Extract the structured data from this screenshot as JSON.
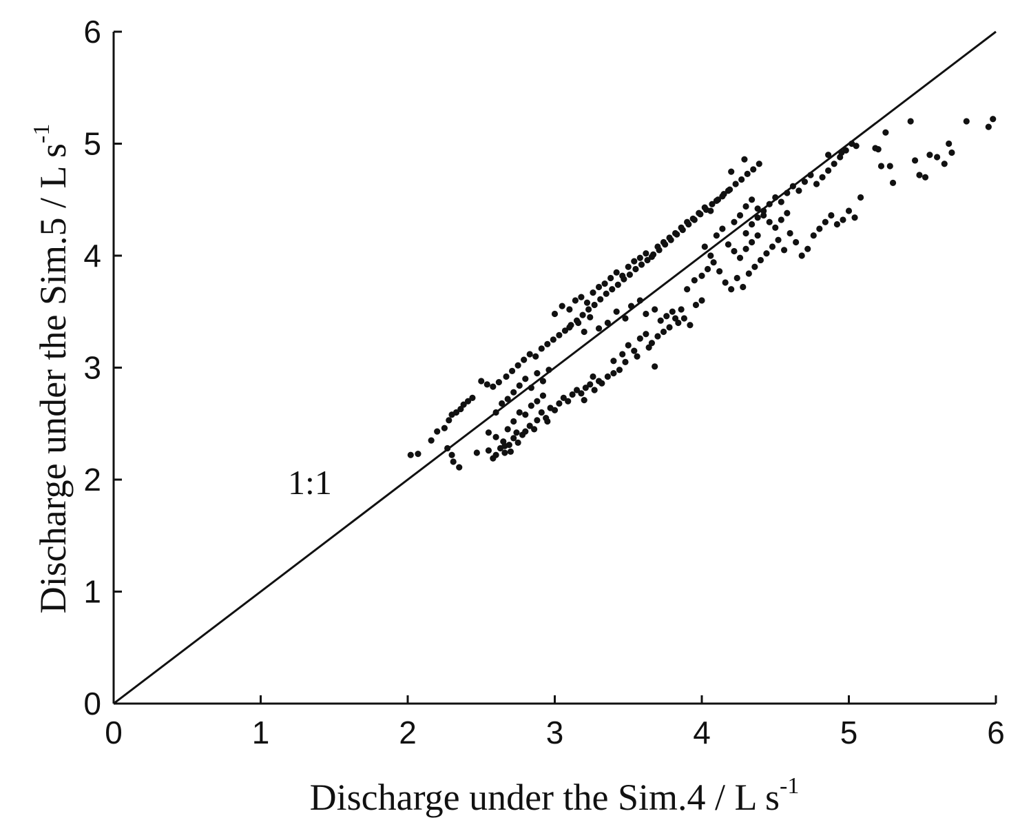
{
  "chart_data": {
    "type": "scatter",
    "title": "",
    "xlabel": "Discharge under the Sim.4 / L s",
    "xlabel_sup": "-1",
    "ylabel": "Discharge under the Sim.5 / L s",
    "ylabel_sup": "-1",
    "xlim": [
      0,
      6
    ],
    "ylim": [
      0,
      6
    ],
    "xticks": [
      "0",
      "1",
      "2",
      "3",
      "4",
      "5",
      "6"
    ],
    "yticks": [
      "0",
      "1",
      "2",
      "3",
      "4",
      "5",
      "6"
    ],
    "grid": false,
    "legend": "none",
    "colors": {
      "points": "#111111",
      "line": "#111111",
      "axis": "#111111"
    },
    "reference_line": {
      "label": "1:1",
      "x": [
        0,
        6
      ],
      "y": [
        0,
        6
      ]
    },
    "series": [
      {
        "points": [
          [
            2.02,
            2.22
          ],
          [
            2.07,
            2.23
          ],
          [
            2.16,
            2.35
          ],
          [
            2.2,
            2.43
          ],
          [
            2.25,
            2.46
          ],
          [
            2.28,
            2.53
          ],
          [
            2.3,
            2.58
          ],
          [
            2.33,
            2.6
          ],
          [
            2.36,
            2.63
          ],
          [
            2.38,
            2.67
          ],
          [
            2.41,
            2.7
          ],
          [
            2.44,
            2.73
          ],
          [
            2.27,
            2.28
          ],
          [
            2.31,
            2.16
          ],
          [
            2.35,
            2.11
          ],
          [
            2.3,
            2.22
          ],
          [
            2.47,
            2.24
          ],
          [
            2.55,
            2.26
          ],
          [
            2.58,
            2.19
          ],
          [
            2.6,
            2.22
          ],
          [
            2.63,
            2.28
          ],
          [
            2.66,
            2.24
          ],
          [
            2.69,
            2.31
          ],
          [
            2.72,
            2.37
          ],
          [
            2.75,
            2.33
          ],
          [
            2.78,
            2.4
          ],
          [
            2.8,
            2.43
          ],
          [
            2.83,
            2.48
          ],
          [
            2.86,
            2.45
          ],
          [
            2.7,
            2.25
          ],
          [
            2.66,
            2.3
          ],
          [
            2.74,
            2.42
          ],
          [
            2.88,
            2.53
          ],
          [
            2.91,
            2.6
          ],
          [
            2.94,
            2.55
          ],
          [
            2.97,
            2.64
          ],
          [
            3.0,
            2.62
          ],
          [
            3.03,
            2.68
          ],
          [
            3.06,
            2.73
          ],
          [
            3.09,
            2.7
          ],
          [
            3.12,
            2.76
          ],
          [
            3.15,
            2.8
          ],
          [
            3.18,
            2.77
          ],
          [
            3.21,
            2.82
          ],
          [
            3.24,
            2.85
          ],
          [
            3.27,
            2.8
          ],
          [
            3.3,
            2.88
          ],
          [
            3.2,
            2.71
          ],
          [
            3.26,
            2.92
          ],
          [
            2.95,
            2.52
          ],
          [
            2.5,
            2.88
          ],
          [
            2.54,
            2.85
          ],
          [
            2.58,
            2.83
          ],
          [
            2.62,
            2.87
          ],
          [
            2.67,
            2.92
          ],
          [
            2.71,
            2.97
          ],
          [
            2.75,
            3.02
          ],
          [
            2.79,
            3.07
          ],
          [
            2.83,
            3.12
          ],
          [
            2.87,
            3.1
          ],
          [
            2.91,
            3.17
          ],
          [
            2.95,
            3.21
          ],
          [
            2.99,
            3.25
          ],
          [
            3.03,
            3.29
          ],
          [
            3.07,
            3.33
          ],
          [
            3.11,
            3.38
          ],
          [
            3.15,
            3.42
          ],
          [
            3.19,
            3.47
          ],
          [
            3.23,
            3.52
          ],
          [
            3.27,
            3.56
          ],
          [
            3.31,
            3.61
          ],
          [
            3.35,
            3.66
          ],
          [
            3.39,
            3.7
          ],
          [
            3.43,
            3.74
          ],
          [
            3.47,
            3.79
          ],
          [
            3.51,
            3.83
          ],
          [
            3.55,
            3.88
          ],
          [
            3.59,
            3.92
          ],
          [
            3.63,
            3.96
          ],
          [
            3.67,
            4.01
          ],
          [
            3.71,
            4.05
          ],
          [
            3.75,
            4.1
          ],
          [
            3.79,
            4.14
          ],
          [
            3.83,
            4.19
          ],
          [
            3.87,
            4.23
          ],
          [
            3.91,
            4.28
          ],
          [
            3.95,
            4.32
          ],
          [
            3.99,
            4.37
          ],
          [
            4.03,
            4.41
          ],
          [
            4.07,
            4.46
          ],
          [
            4.11,
            4.5
          ],
          [
            4.15,
            4.55
          ],
          [
            4.19,
            4.59
          ],
          [
            4.23,
            4.64
          ],
          [
            4.27,
            4.68
          ],
          [
            4.31,
            4.73
          ],
          [
            4.35,
            4.77
          ],
          [
            4.39,
            4.82
          ],
          [
            4.29,
            4.86
          ],
          [
            4.2,
            4.75
          ],
          [
            3.0,
            3.48
          ],
          [
            3.05,
            3.55
          ],
          [
            3.1,
            3.52
          ],
          [
            3.14,
            3.6
          ],
          [
            3.18,
            3.63
          ],
          [
            3.22,
            3.58
          ],
          [
            3.26,
            3.67
          ],
          [
            3.3,
            3.72
          ],
          [
            3.34,
            3.75
          ],
          [
            3.38,
            3.8
          ],
          [
            3.42,
            3.85
          ],
          [
            3.46,
            3.82
          ],
          [
            3.5,
            3.9
          ],
          [
            3.54,
            3.95
          ],
          [
            3.58,
            3.98
          ],
          [
            3.62,
            4.02
          ],
          [
            3.66,
            3.99
          ],
          [
            3.7,
            4.08
          ],
          [
            3.74,
            4.12
          ],
          [
            3.78,
            4.16
          ],
          [
            3.82,
            4.2
          ],
          [
            3.86,
            4.25
          ],
          [
            3.9,
            4.3
          ],
          [
            3.94,
            4.33
          ],
          [
            3.98,
            4.38
          ],
          [
            4.02,
            4.43
          ],
          [
            4.06,
            4.4
          ],
          [
            4.1,
            4.49
          ],
          [
            4.14,
            4.53
          ],
          [
            4.18,
            4.58
          ],
          [
            3.1,
            3.36
          ],
          [
            3.16,
            3.4
          ],
          [
            3.2,
            3.32
          ],
          [
            3.24,
            3.45
          ],
          [
            3.3,
            3.35
          ],
          [
            3.36,
            3.4
          ],
          [
            3.42,
            3.5
          ],
          [
            3.48,
            3.44
          ],
          [
            3.52,
            3.55
          ],
          [
            3.58,
            3.6
          ],
          [
            3.62,
            3.48
          ],
          [
            3.68,
            3.52
          ],
          [
            3.72,
            3.42
          ],
          [
            3.76,
            3.46
          ],
          [
            3.8,
            3.5
          ],
          [
            3.84,
            3.4
          ],
          [
            3.88,
            3.44
          ],
          [
            3.92,
            3.38
          ],
          [
            3.96,
            3.56
          ],
          [
            4.0,
            3.6
          ],
          [
            3.4,
            3.06
          ],
          [
            3.46,
            3.12
          ],
          [
            3.5,
            3.2
          ],
          [
            3.54,
            3.15
          ],
          [
            3.58,
            3.26
          ],
          [
            3.62,
            3.3
          ],
          [
            3.66,
            3.22
          ],
          [
            3.7,
            3.28
          ],
          [
            3.74,
            3.32
          ],
          [
            3.78,
            3.36
          ],
          [
            3.44,
            2.98
          ],
          [
            3.48,
            3.05
          ],
          [
            3.56,
            3.1
          ],
          [
            3.64,
            3.18
          ],
          [
            3.68,
            3.01
          ],
          [
            3.36,
            2.92
          ],
          [
            3.32,
            2.86
          ],
          [
            3.4,
            2.95
          ],
          [
            3.82,
            3.44
          ],
          [
            3.86,
            3.52
          ],
          [
            3.9,
            3.7
          ],
          [
            3.95,
            3.78
          ],
          [
            4.0,
            3.82
          ],
          [
            4.04,
            3.88
          ],
          [
            4.08,
            3.94
          ],
          [
            4.12,
            3.86
          ],
          [
            4.16,
            3.76
          ],
          [
            4.2,
            3.7
          ],
          [
            4.24,
            3.8
          ],
          [
            4.28,
            3.72
          ],
          [
            4.32,
            3.84
          ],
          [
            4.36,
            3.9
          ],
          [
            4.4,
            3.96
          ],
          [
            4.44,
            4.02
          ],
          [
            4.48,
            4.08
          ],
          [
            4.52,
            4.14
          ],
          [
            4.56,
            4.05
          ],
          [
            4.6,
            4.2
          ],
          [
            4.64,
            4.12
          ],
          [
            4.68,
            4.0
          ],
          [
            4.72,
            4.06
          ],
          [
            4.76,
            4.18
          ],
          [
            4.8,
            4.24
          ],
          [
            4.84,
            4.3
          ],
          [
            4.88,
            4.36
          ],
          [
            4.92,
            4.28
          ],
          [
            4.96,
            4.32
          ],
          [
            5.0,
            4.4
          ],
          [
            5.04,
            4.34
          ],
          [
            5.08,
            4.52
          ],
          [
            4.3,
            4.2
          ],
          [
            4.34,
            4.28
          ],
          [
            4.38,
            4.34
          ],
          [
            4.42,
            4.4
          ],
          [
            4.46,
            4.46
          ],
          [
            4.5,
            4.52
          ],
          [
            4.54,
            4.48
          ],
          [
            4.58,
            4.56
          ],
          [
            4.62,
            4.62
          ],
          [
            4.66,
            4.58
          ],
          [
            4.7,
            4.66
          ],
          [
            4.74,
            4.72
          ],
          [
            4.78,
            4.64
          ],
          [
            4.82,
            4.7
          ],
          [
            4.86,
            4.76
          ],
          [
            4.9,
            4.82
          ],
          [
            4.94,
            4.88
          ],
          [
            4.98,
            4.94
          ],
          [
            5.02,
            5.0
          ],
          [
            4.86,
            4.9
          ],
          [
            4.22,
            4.3
          ],
          [
            4.26,
            4.36
          ],
          [
            4.3,
            4.44
          ],
          [
            4.34,
            4.5
          ],
          [
            4.38,
            4.42
          ],
          [
            4.42,
            4.36
          ],
          [
            4.46,
            4.3
          ],
          [
            4.5,
            4.25
          ],
          [
            4.54,
            4.32
          ],
          [
            4.58,
            4.38
          ],
          [
            4.1,
            4.18
          ],
          [
            4.14,
            4.24
          ],
          [
            4.18,
            4.1
          ],
          [
            4.22,
            4.04
          ],
          [
            4.26,
            3.98
          ],
          [
            4.3,
            4.06
          ],
          [
            4.34,
            4.12
          ],
          [
            4.38,
            4.18
          ],
          [
            4.06,
            4.0
          ],
          [
            4.02,
            4.08
          ],
          [
            5.2,
            4.95
          ],
          [
            5.22,
            4.8
          ],
          [
            5.25,
            5.1
          ],
          [
            5.3,
            4.65
          ],
          [
            5.28,
            4.8
          ],
          [
            5.42,
            5.2
          ],
          [
            5.45,
            4.85
          ],
          [
            5.48,
            4.72
          ],
          [
            5.52,
            4.7
          ],
          [
            5.55,
            4.9
          ],
          [
            5.6,
            4.88
          ],
          [
            5.65,
            4.82
          ],
          [
            5.68,
            5.0
          ],
          [
            5.7,
            4.92
          ],
          [
            5.8,
            5.2
          ],
          [
            5.95,
            5.15
          ],
          [
            5.98,
            5.22
          ],
          [
            5.18,
            4.96
          ],
          [
            5.05,
            4.98
          ],
          [
            4.95,
            4.92
          ],
          [
            2.55,
            2.42
          ],
          [
            2.6,
            2.38
          ],
          [
            2.65,
            2.34
          ],
          [
            2.68,
            2.45
          ],
          [
            2.72,
            2.52
          ],
          [
            2.76,
            2.6
          ],
          [
            2.8,
            2.58
          ],
          [
            2.84,
            2.66
          ],
          [
            2.88,
            2.7
          ],
          [
            2.92,
            2.75
          ],
          [
            2.6,
            2.6
          ],
          [
            2.64,
            2.68
          ],
          [
            2.68,
            2.72
          ],
          [
            2.72,
            2.78
          ],
          [
            2.76,
            2.84
          ],
          [
            2.8,
            2.9
          ],
          [
            2.84,
            2.82
          ],
          [
            2.88,
            2.95
          ],
          [
            2.92,
            2.88
          ],
          [
            2.96,
            2.98
          ]
        ]
      }
    ]
  }
}
